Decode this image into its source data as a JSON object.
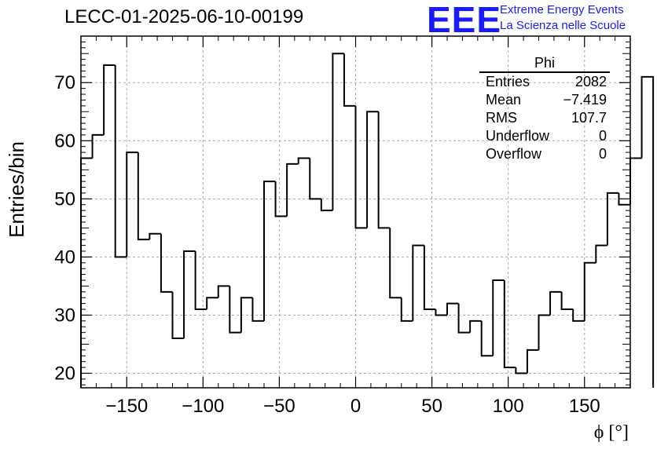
{
  "title": "LECC-01-2025-06-10-00199",
  "logo": {
    "mark": "EEE",
    "line1": "Extreme Energy Events",
    "line2": "La Scienza nelle Scuole"
  },
  "stats": {
    "header": "Phi",
    "rows": [
      {
        "label": "Entries",
        "value": "2082"
      },
      {
        "label": "Mean",
        "value": "−7.419"
      },
      {
        "label": "RMS",
        "value": "107.7"
      },
      {
        "label": "Underflow",
        "value": "0"
      },
      {
        "label": "Overflow",
        "value": "0"
      }
    ]
  },
  "chart_data": {
    "type": "histogram",
    "xlabel": "ϕ [°]",
    "ylabel": "Entries/bin",
    "xlim": [
      -180,
      180
    ],
    "ylim": [
      17.5,
      78
    ],
    "bin_width": 7.5,
    "x_ticks": [
      -150,
      -100,
      -50,
      0,
      50,
      100,
      150
    ],
    "x_tick_labels": [
      "−150",
      "−100",
      "−50",
      "0",
      "50",
      "100",
      "150"
    ],
    "y_ticks": [
      20,
      30,
      40,
      50,
      60,
      70
    ],
    "y_tick_labels": [
      "20",
      "30",
      "40",
      "50",
      "60",
      "70"
    ],
    "grid": true,
    "values": [
      57,
      61,
      73,
      40,
      58,
      43,
      44,
      34,
      26,
      41,
      31,
      33,
      35,
      27,
      33,
      29,
      53,
      47,
      56,
      57,
      50,
      48,
      75,
      66,
      45,
      65,
      45,
      33,
      29,
      42,
      31,
      30,
      32,
      27,
      29,
      23,
      36,
      21,
      20,
      24,
      30,
      34,
      31,
      29,
      39,
      42,
      51,
      49,
      57,
      71
    ],
    "line_color": "#000000"
  }
}
